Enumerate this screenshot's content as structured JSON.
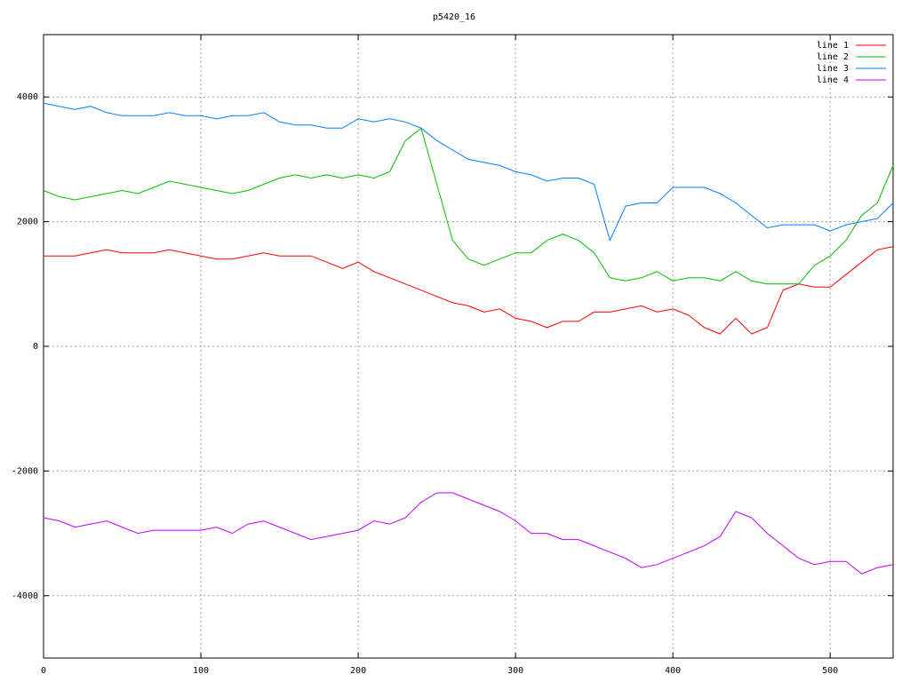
{
  "chart_data": {
    "type": "line",
    "title": "p5420_16",
    "x": [
      0,
      10,
      20,
      30,
      40,
      50,
      60,
      70,
      80,
      90,
      100,
      110,
      120,
      130,
      140,
      150,
      160,
      170,
      180,
      190,
      200,
      210,
      220,
      230,
      240,
      250,
      260,
      270,
      280,
      290,
      300,
      310,
      320,
      330,
      340,
      350,
      360,
      370,
      380,
      390,
      400,
      410,
      420,
      430,
      440,
      450,
      460,
      470,
      480,
      490,
      500,
      510,
      520,
      530,
      540
    ],
    "series": [
      {
        "name": "line 1",
        "color": "#ff0000",
        "values": [
          1450,
          1450,
          1450,
          1500,
          1550,
          1500,
          1500,
          1500,
          1550,
          1500,
          1450,
          1400,
          1400,
          1450,
          1500,
          1450,
          1450,
          1450,
          1350,
          1250,
          1350,
          1200,
          1100,
          1000,
          900,
          800,
          700,
          650,
          550,
          600,
          450,
          400,
          300,
          400,
          400,
          550,
          550,
          600,
          650,
          550,
          600,
          500,
          300,
          200,
          450,
          200,
          300,
          900,
          1000,
          950,
          950,
          1150,
          1350,
          1550,
          1600
        ]
      },
      {
        "name": "line 2",
        "color": "#00c000",
        "values": [
          2500,
          2400,
          2350,
          2400,
          2450,
          2500,
          2450,
          2550,
          2650,
          2600,
          2550,
          2500,
          2450,
          2500,
          2600,
          2700,
          2750,
          2700,
          2750,
          2700,
          2750,
          2700,
          2800,
          3300,
          3500,
          2600,
          1700,
          1400,
          1300,
          1400,
          1500,
          1500,
          1700,
          1800,
          1700,
          1500,
          1100,
          1050,
          1100,
          1200,
          1050,
          1100,
          1100,
          1050,
          1200,
          1050,
          1000,
          1000,
          1000,
          1300,
          1450,
          1700,
          2100,
          2300,
          2900
        ]
      },
      {
        "name": "line 3",
        "color": "#0080ff",
        "values": [
          3900,
          3850,
          3800,
          3850,
          3750,
          3700,
          3700,
          3700,
          3750,
          3700,
          3700,
          3650,
          3700,
          3700,
          3750,
          3600,
          3550,
          3550,
          3500,
          3500,
          3650,
          3600,
          3650,
          3600,
          3500,
          3300,
          3150,
          3000,
          2950,
          2900,
          2800,
          2750,
          2650,
          2700,
          2700,
          2600,
          1700,
          2250,
          2300,
          2300,
          2550,
          2550,
          2550,
          2450,
          2300,
          2100,
          1900,
          1950,
          1950,
          1950,
          1850,
          1950,
          2000,
          2050,
          2300
        ]
      },
      {
        "name": "line 4",
        "color": "#c000ff",
        "values": [
          -2750,
          -2800,
          -2900,
          -2850,
          -2800,
          -2900,
          -3000,
          -2950,
          -2950,
          -2950,
          -2950,
          -2900,
          -3000,
          -2850,
          -2800,
          -2900,
          -3000,
          -3100,
          -3050,
          -3000,
          -2950,
          -2800,
          -2850,
          -2750,
          -2500,
          -2350,
          -2350,
          -2450,
          -2550,
          -2650,
          -2800,
          -3000,
          -3000,
          -3100,
          -3100,
          -3200,
          -3300,
          -3400,
          -3550,
          -3500,
          -3400,
          -3300,
          -3200,
          -3050,
          -2650,
          -2750,
          -3000,
          -3200,
          -3400,
          -3500,
          -3450,
          -3450,
          -3650,
          -3550,
          -3500
        ]
      }
    ],
    "xlim": [
      0,
      540
    ],
    "xticks": [
      0,
      100,
      200,
      300,
      400,
      500
    ],
    "ylim": [
      -5000,
      5000
    ],
    "yticks": [
      -4000,
      -2000,
      0,
      2000,
      4000
    ],
    "grid": true,
    "legend": "top-right"
  }
}
